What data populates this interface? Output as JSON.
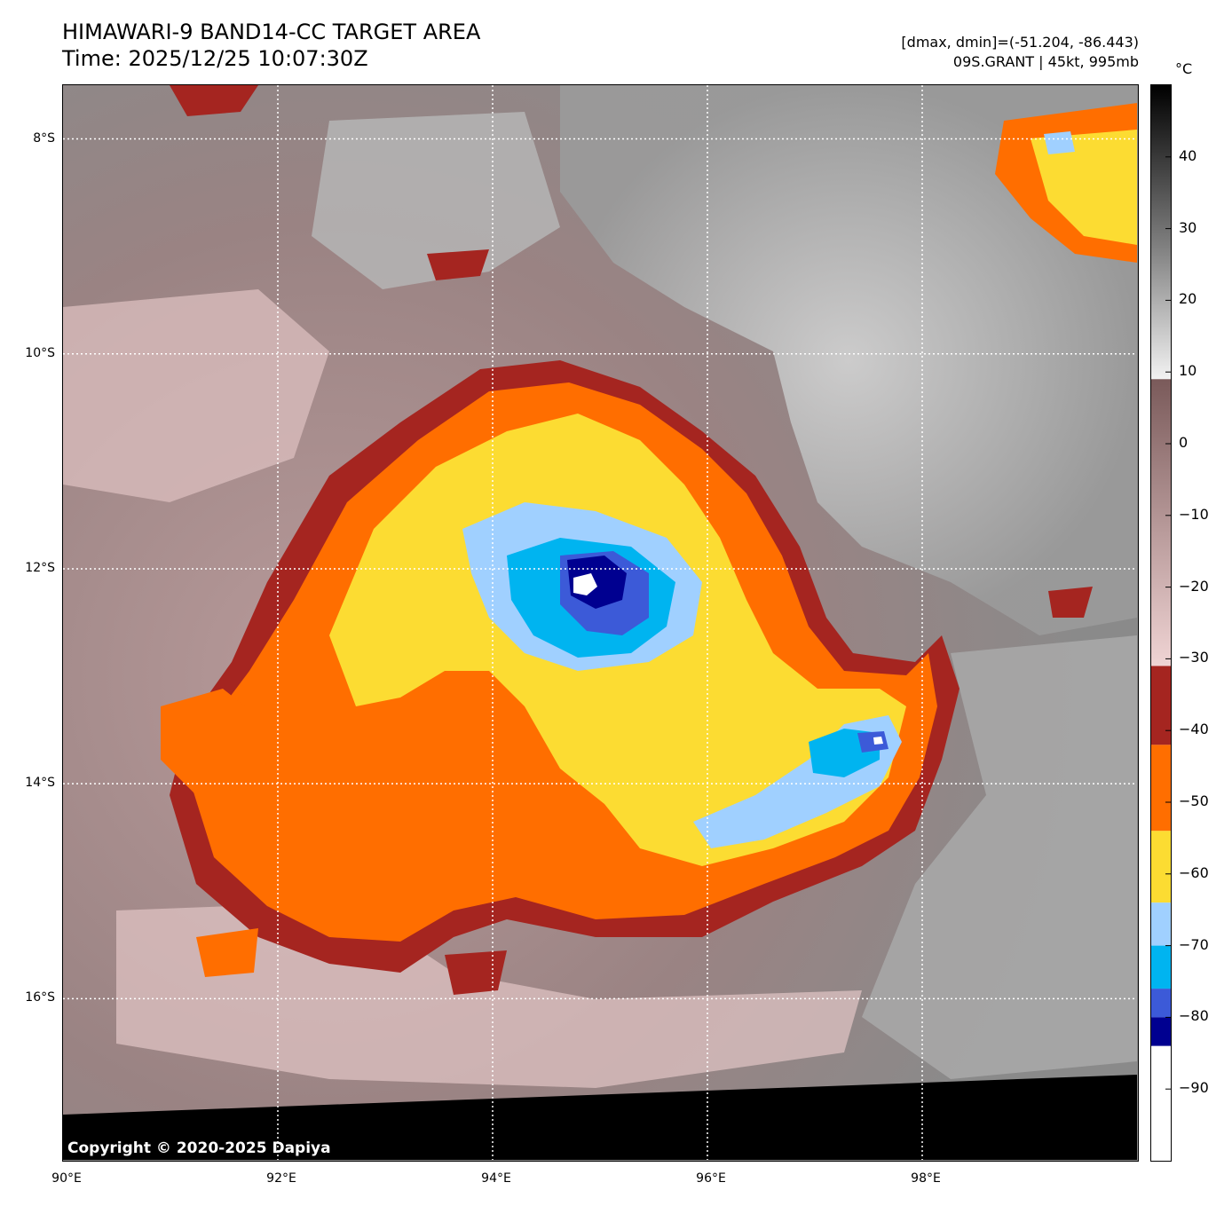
{
  "header": {
    "title_line1": "HIMAWARI-9 BAND14-CC TARGET AREA",
    "title_line2": "Time: 2025/12/25 10:07:30Z",
    "stats_line": "[dmax, dmin]=(-51.204, -86.443)",
    "storm_line": "09S.GRANT | 45kt, 995mb"
  },
  "map": {
    "lon_range": [
      90,
      100
    ],
    "lat_range": [
      -17.5,
      -7.5
    ],
    "lat_ticks": [
      {
        "value": -8,
        "label": "8°S"
      },
      {
        "value": -10,
        "label": "10°S"
      },
      {
        "value": -12,
        "label": "12°S"
      },
      {
        "value": -14,
        "label": "14°S"
      },
      {
        "value": -16,
        "label": "16°S"
      }
    ],
    "lon_ticks": [
      {
        "value": 90,
        "label": "90°E"
      },
      {
        "value": 92,
        "label": "92°E"
      },
      {
        "value": 94,
        "label": "94°E"
      },
      {
        "value": 96,
        "label": "96°E"
      },
      {
        "value": 98,
        "label": "98°E"
      }
    ],
    "storm_center": {
      "lon": 94.8,
      "lat": -12.4
    },
    "secondary_cell": {
      "lon": 97.5,
      "lat": -13.9
    },
    "gridlines": "dotted white",
    "no_data_color": "#000000"
  },
  "colorbar": {
    "unit": "°C",
    "range": [
      -100,
      50
    ],
    "ticks": [
      40,
      30,
      20,
      10,
      0,
      -10,
      -20,
      -30,
      -40,
      -50,
      -60,
      -70,
      -80,
      -90
    ],
    "tick_labels": [
      "40",
      "30",
      "20",
      "10",
      "0",
      "−10",
      "−20",
      "−30",
      "−40",
      "−50",
      "−60",
      "−70",
      "−80",
      "−90"
    ],
    "palette": {
      "warm_black": "#000000",
      "warm_gray": "#808080",
      "near_white": "#f2f2f2",
      "mauve_dark": "#7a5a5a",
      "mauve_pink": "#f0d4d4",
      "red": "#a52520",
      "orange": "#ff6e00",
      "yellow": "#fcdc32",
      "light_blue": "#a0d0ff",
      "cyan": "#00b4f0",
      "royal_blue": "#3c5ad8",
      "navy": "#000090",
      "white": "#ffffff"
    }
  },
  "footer": {
    "copyright": "Copyright © 2020-2025 Dapiya"
  }
}
